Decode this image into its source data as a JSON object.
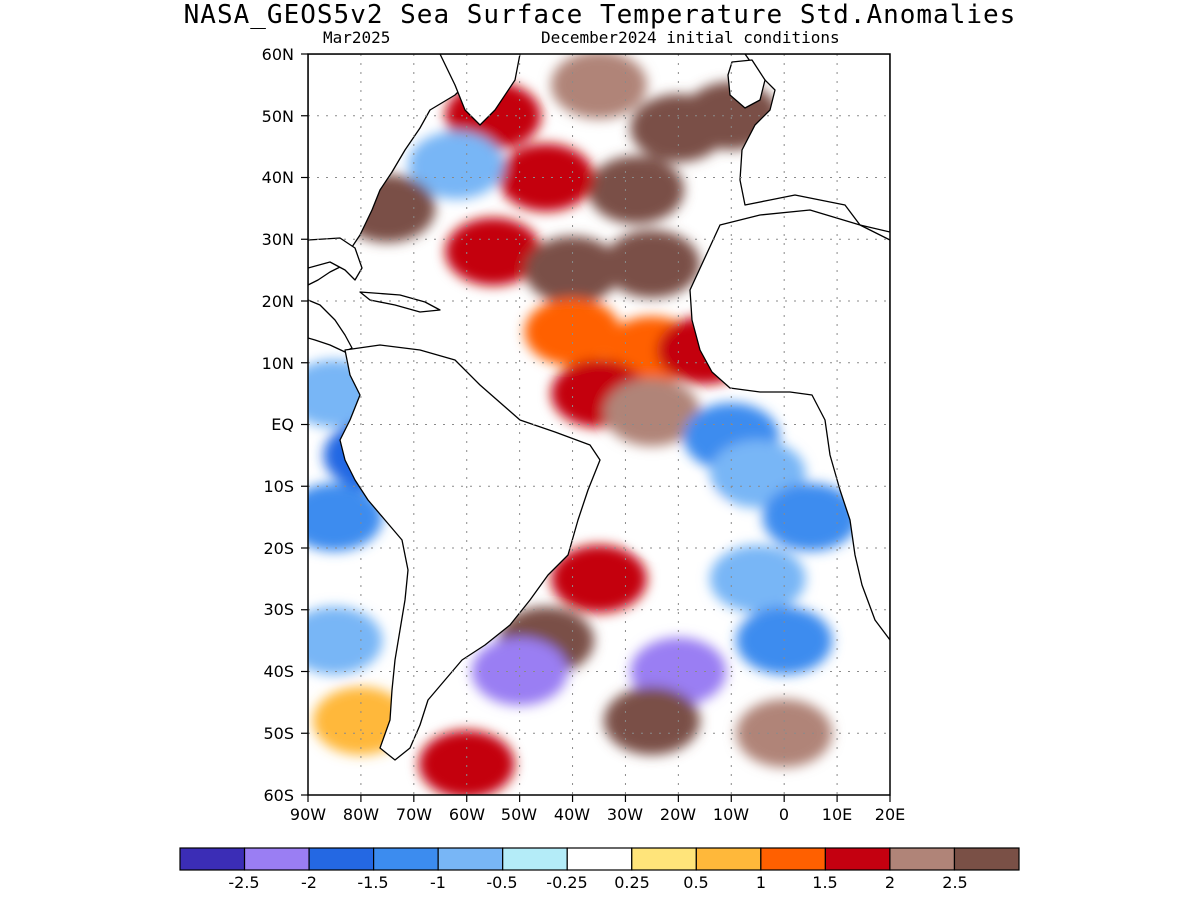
{
  "header": {
    "title": "NASA_GEOS5v2 Sea Surface Temperature Std.Anomalies",
    "valid_month": "Mar2025",
    "init_label": "December2024 initial conditions"
  },
  "axes": {
    "lat_ticks": [
      "60N",
      "50N",
      "40N",
      "30N",
      "20N",
      "10N",
      "EQ",
      "10S",
      "20S",
      "30S",
      "40S",
      "50S",
      "60S"
    ],
    "lon_ticks": [
      "90W",
      "80W",
      "70W",
      "60W",
      "50W",
      "40W",
      "30W",
      "20W",
      "10W",
      "0",
      "10E",
      "20E"
    ]
  },
  "colorbar": {
    "colors": [
      "#3b2db6",
      "#9a7ef3",
      "#2468e3",
      "#3c8cef",
      "#78b6f6",
      "#b4ecf8",
      "#ffffff",
      "#ffe47a",
      "#ffb83a",
      "#ff6000",
      "#c40010",
      "#b08478",
      "#7a5046"
    ],
    "labels": [
      "-2.5",
      "-2",
      "-1.5",
      "-1",
      "-0.5",
      "-0.25",
      "0.25",
      "0.5",
      "1",
      "1.5",
      "2",
      "2.5"
    ]
  },
  "chart_data": {
    "type": "heatmap",
    "title": "NASA_GEOS5v2 Sea Surface Temperature Std.Anomalies",
    "subtitle": "Mar2025 — December2024 initial conditions",
    "x_range": [
      -90,
      20
    ],
    "y_range": [
      -60,
      60
    ],
    "levels": [
      -2.5,
      -2,
      -1.5,
      -1,
      -0.5,
      -0.25,
      0.25,
      0.5,
      1,
      1.5,
      2,
      2.5
    ],
    "regions": [
      {
        "lon": -55,
        "lat": 50,
        "value": 1.5
      },
      {
        "lon": -35,
        "lat": 55,
        "value": 2.0
      },
      {
        "lon": -20,
        "lat": 48,
        "value": 2.5
      },
      {
        "lon": -10,
        "lat": 50,
        "value": 2.7
      },
      {
        "lon": -28,
        "lat": 38,
        "value": 2.7
      },
      {
        "lon": -45,
        "lat": 40,
        "value": 1.5
      },
      {
        "lon": -62,
        "lat": 42,
        "value": -1.0
      },
      {
        "lon": -75,
        "lat": 35,
        "value": 2.5
      },
      {
        "lon": -55,
        "lat": 28,
        "value": 1.8
      },
      {
        "lon": -40,
        "lat": 25,
        "value": 2.6
      },
      {
        "lon": -25,
        "lat": 26,
        "value": 2.7
      },
      {
        "lon": -40,
        "lat": 15,
        "value": 1.2
      },
      {
        "lon": -25,
        "lat": 12,
        "value": 1.2
      },
      {
        "lon": -35,
        "lat": 5,
        "value": 1.5
      },
      {
        "lon": -25,
        "lat": 2,
        "value": 2.0
      },
      {
        "lon": -15,
        "lat": 12,
        "value": 1.8
      },
      {
        "lon": -85,
        "lat": 5,
        "value": -0.8
      },
      {
        "lon": -85,
        "lat": -15,
        "value": -1.2
      },
      {
        "lon": -85,
        "lat": -35,
        "value": -1.0
      },
      {
        "lon": -78,
        "lat": -5,
        "value": -2.0
      },
      {
        "lon": -10,
        "lat": -2,
        "value": -1.2
      },
      {
        "lon": -5,
        "lat": -8,
        "value": -0.8
      },
      {
        "lon": 5,
        "lat": -15,
        "value": -1.3
      },
      {
        "lon": -20,
        "lat": -15,
        "value": 0.0
      },
      {
        "lon": -5,
        "lat": -25,
        "value": -1.0
      },
      {
        "lon": -35,
        "lat": -25,
        "value": 1.5
      },
      {
        "lon": -45,
        "lat": -35,
        "value": 2.6
      },
      {
        "lon": -50,
        "lat": -40,
        "value": -2.5
      },
      {
        "lon": -20,
        "lat": -40,
        "value": -2.5
      },
      {
        "lon": -25,
        "lat": -48,
        "value": 2.5
      },
      {
        "lon": 0,
        "lat": -35,
        "value": -1.2
      },
      {
        "lon": 0,
        "lat": -50,
        "value": 2.0
      },
      {
        "lon": -60,
        "lat": -55,
        "value": 1.5
      },
      {
        "lon": -80,
        "lat": -48,
        "value": 0.5
      }
    ]
  }
}
